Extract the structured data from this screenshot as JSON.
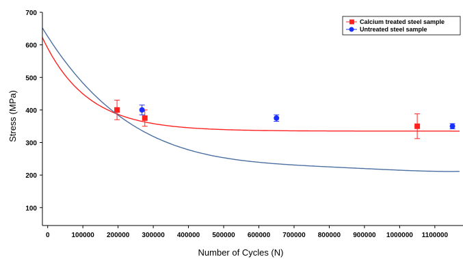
{
  "chart_data": {
    "type": "scatter",
    "title": "",
    "xlabel": "Number of Cycles (N)",
    "ylabel": "Stress (MPa)",
    "xlim": [
      -15000,
      1180000
    ],
    "ylim": [
      45,
      700
    ],
    "xticks": [
      0,
      100000,
      200000,
      300000,
      400000,
      500000,
      600000,
      700000,
      800000,
      900000,
      1000000,
      1100000
    ],
    "xtick_labels": [
      "0",
      "100000",
      "200000",
      "300000",
      "400000",
      "500000",
      "600000",
      "700000",
      "800000",
      "900000",
      "1000000",
      "1100000"
    ],
    "yticks": [
      100,
      200,
      300,
      400,
      500,
      600,
      700
    ],
    "ytick_labels": [
      "100",
      "200",
      "300",
      "400",
      "500",
      "600",
      "700"
    ],
    "grid": false,
    "legend_position": "top-right",
    "series": [
      {
        "name": "Calcium treated steel sample",
        "color": "#ff2020",
        "marker": "square",
        "points": [
          {
            "x": 197000,
            "y": 400,
            "err": 30
          },
          {
            "x": 276000,
            "y": 375,
            "err": 25
          },
          {
            "x": 1050000,
            "y": 350,
            "err": 38
          }
        ],
        "fit": {
          "asymptote": 335,
          "amplitude": 255,
          "decay": 125000
        }
      },
      {
        "name": "Untreated steel sample",
        "color": "#1a2eff",
        "marker": "circle",
        "points": [
          {
            "x": 268000,
            "y": 400,
            "err": 15
          },
          {
            "x": 650000,
            "y": 375,
            "err": 10
          },
          {
            "x": 1150000,
            "y": 350,
            "err": 8
          }
        ],
        "fit": {
          "coeffs": [
            626,
            -0.00169,
            2.805e-09,
            -2.139e-15,
            6.13e-22
          ]
        }
      }
    ]
  },
  "colors": {
    "axis": "#000000",
    "red_curve": "#ff2020",
    "blue_curve": "#4a6fa0"
  }
}
